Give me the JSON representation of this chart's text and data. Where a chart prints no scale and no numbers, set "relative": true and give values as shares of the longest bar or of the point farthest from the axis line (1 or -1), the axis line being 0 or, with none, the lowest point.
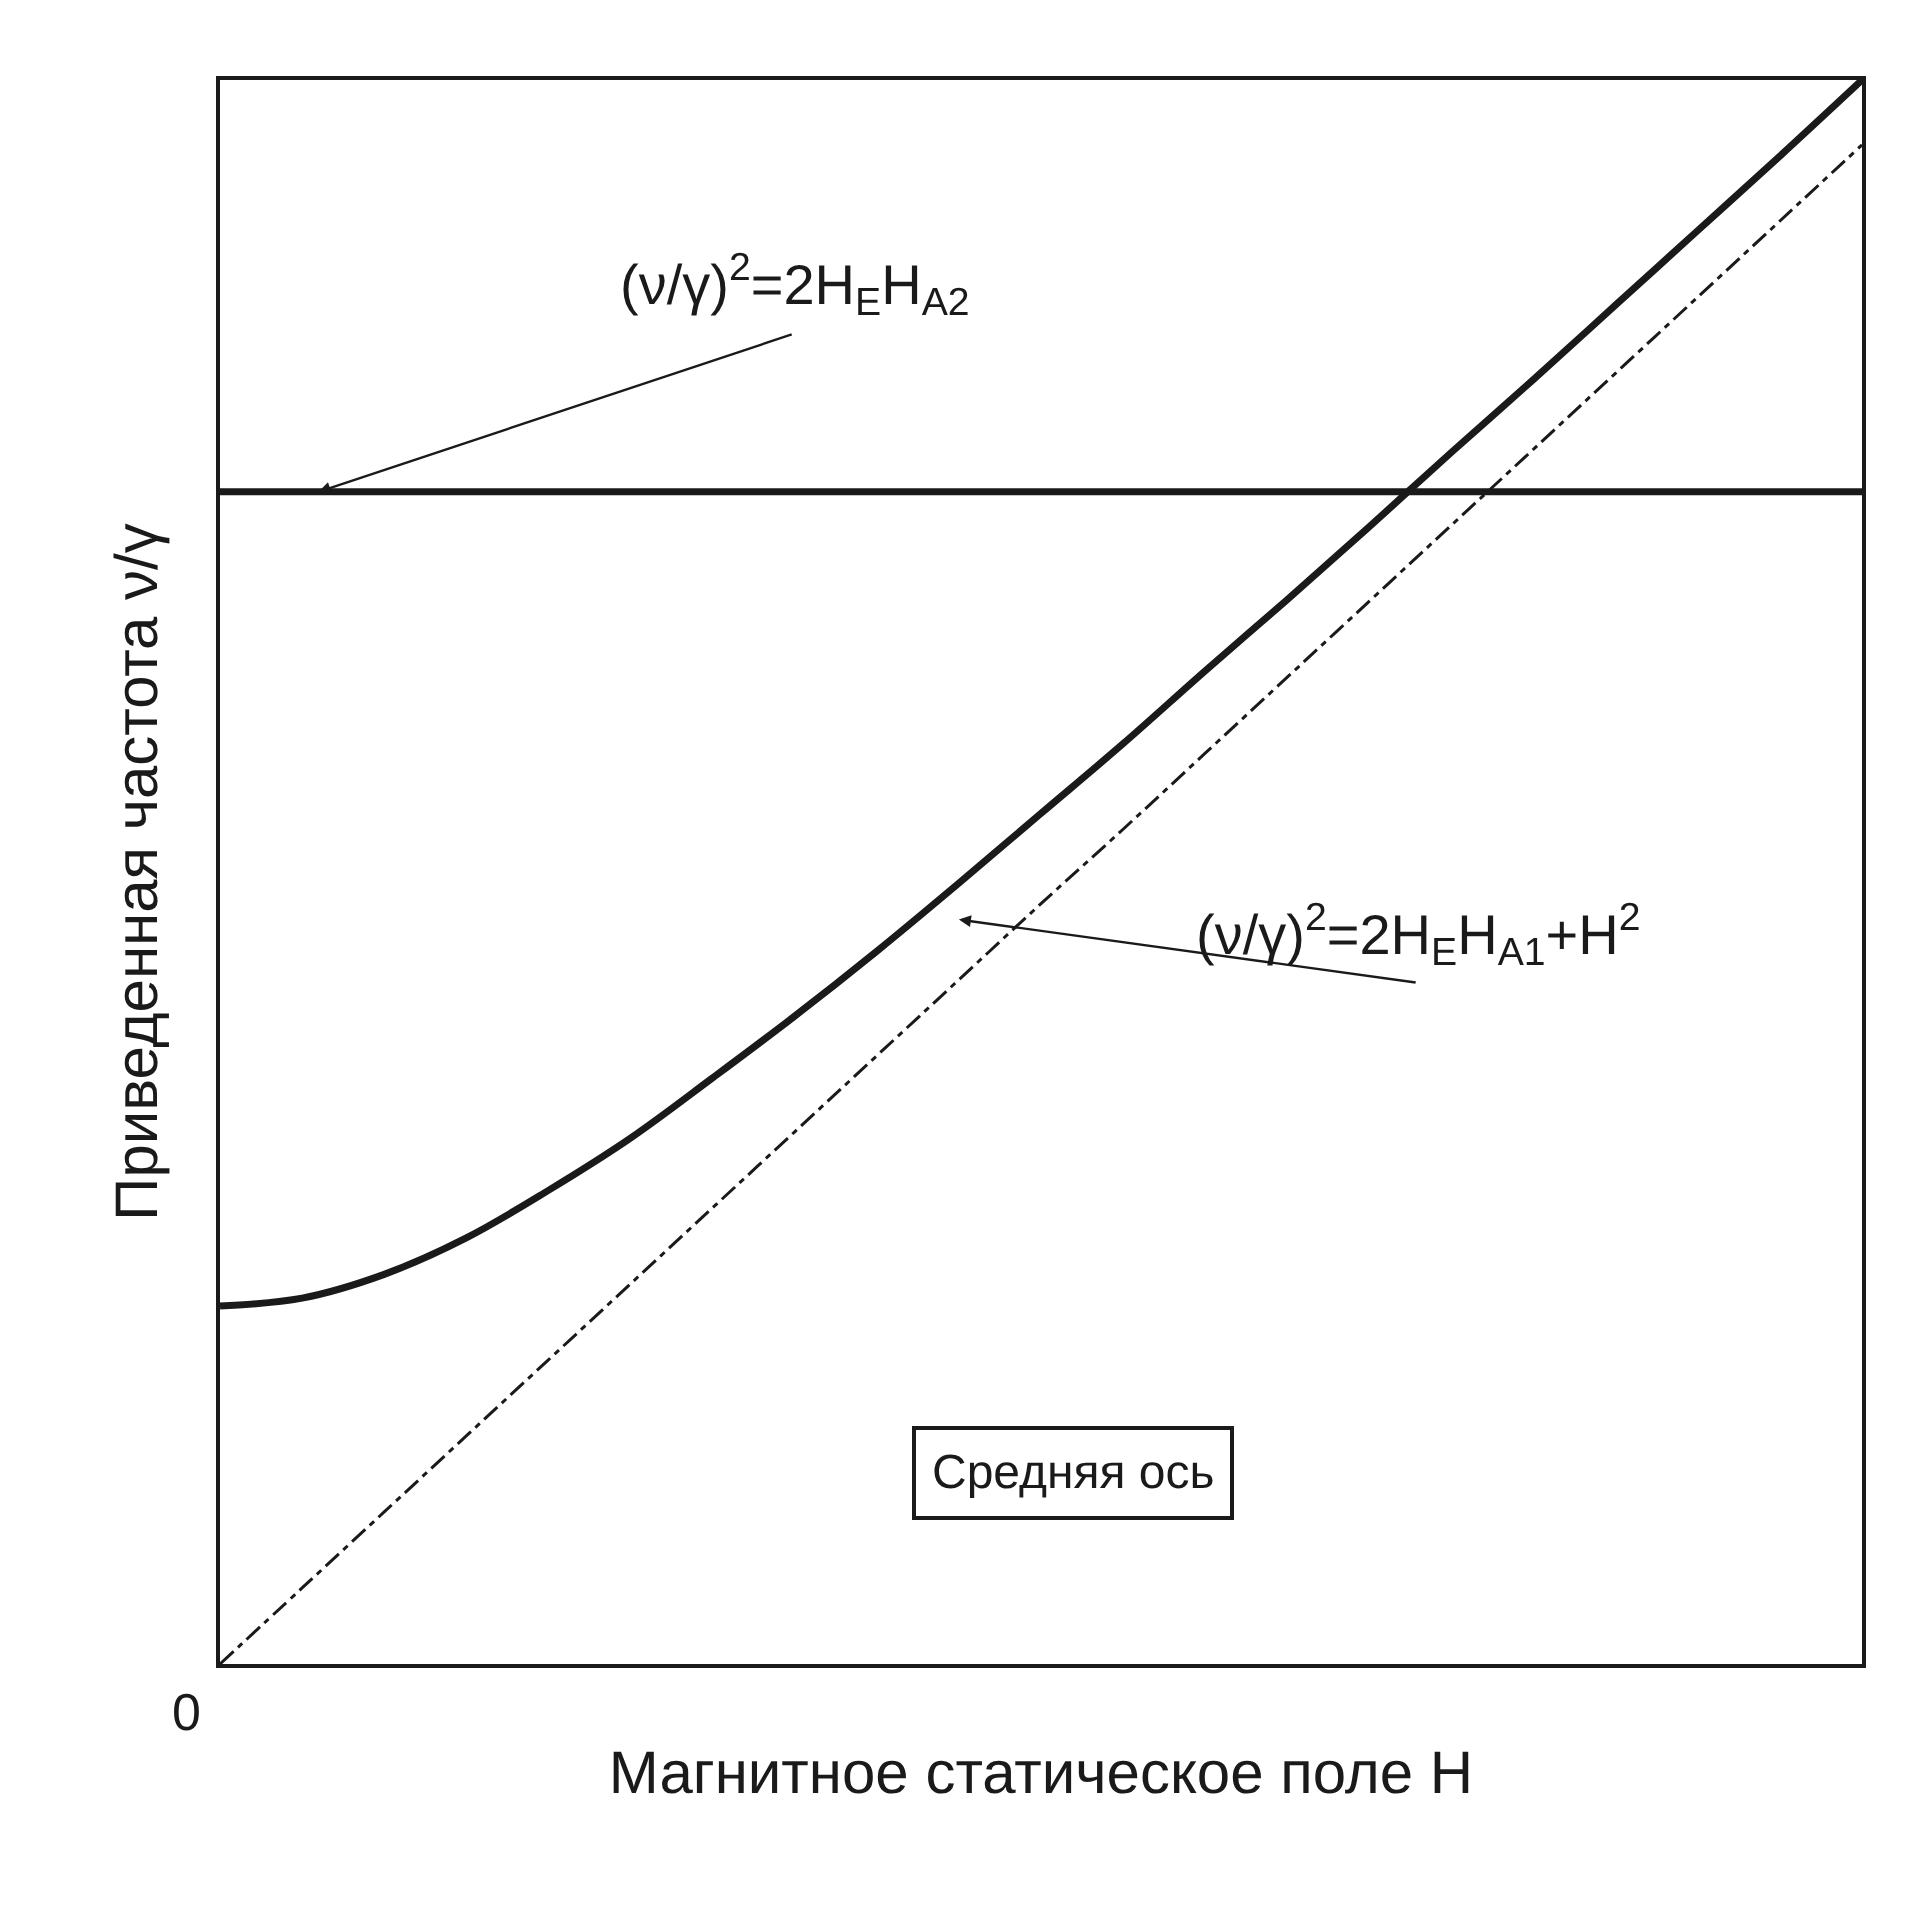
{
  "chart_data": {
    "type": "line",
    "relative": true,
    "xlabel": "Магнитное статическое поле H",
    "ylabel": "Приведенная частота ν/γ",
    "categories": [
      null,
      null,
      null,
      null,
      null,
      null,
      null,
      null,
      null,
      null,
      null,
      null,
      null,
      null,
      null,
      null,
      null,
      null,
      null,
      null,
      null
    ],
    "series": [
      {
        "color": "#1a1a1a",
        "line_style": "solid",
        "values": [
          0.226,
          0.231,
          0.246,
          0.269,
          0.299,
          0.332,
          0.37,
          0.409,
          0.45,
          0.493,
          0.537,
          0.581,
          0.627,
          0.672,
          0.718,
          0.765,
          0.811,
          0.858,
          0.905,
          0.952,
          1.0
        ]
      },
      {
        "color": "#1a1a1a",
        "line_style": "solid",
        "values": [
          0.74,
          0.74,
          0.74,
          0.74,
          0.74,
          0.74,
          0.74,
          0.74,
          0.74,
          0.74,
          0.74,
          0.74,
          0.74,
          0.74,
          0.74,
          0.74,
          0.74,
          0.74,
          0.74,
          0.74,
          0.74
        ]
      },
      {
        "color": "#1a1a1a",
        "line_style": "dashed",
        "values": [
          0,
          0.048,
          0.096,
          0.144,
          0.192,
          0.24,
          0.288,
          0.336,
          0.384,
          0.432,
          0.48,
          0.527,
          0.575,
          0.623,
          0.671,
          0.719,
          0.767,
          0.815,
          0.863,
          0.911,
          0.959
        ]
      }
    ],
    "annotations": [
      "(ν/γ)$^{2}$=2H$_{E}$H$_{A2}$",
      "(ν/γ)$^{2}$=2H$_{E}$H$_{A1}$+H$^{2}$",
      "Средняя ось",
      "0"
    ],
    "marker": "none"
  }
}
